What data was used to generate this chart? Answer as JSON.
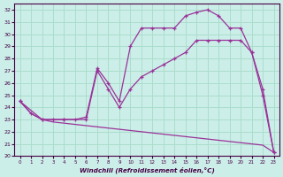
{
  "background_color": "#cceee8",
  "grid_color": "#aaddcc",
  "line_color": "#993399",
  "xlabel": "Windchill (Refroidissement éolien,°C)",
  "xlim": [
    -0.5,
    23.5
  ],
  "ylim": [
    20,
    32.5
  ],
  "xticks": [
    0,
    1,
    2,
    3,
    4,
    5,
    6,
    7,
    8,
    9,
    10,
    11,
    12,
    13,
    14,
    15,
    16,
    17,
    18,
    19,
    20,
    21,
    22,
    23
  ],
  "yticks": [
    20,
    21,
    22,
    23,
    24,
    25,
    26,
    27,
    28,
    29,
    30,
    31,
    32
  ],
  "curve1_x": [
    0,
    1,
    2,
    3,
    4,
    5,
    6,
    7,
    8,
    9,
    10,
    11,
    12,
    13,
    14,
    15,
    16,
    17,
    18,
    19,
    20,
    21,
    22,
    23
  ],
  "curve1_y": [
    24.5,
    23.5,
    23.0,
    23.0,
    23.0,
    23.0,
    23.2,
    27.2,
    26.0,
    24.5,
    29.0,
    30.5,
    30.5,
    30.5,
    30.5,
    31.5,
    31.8,
    32.0,
    31.5,
    30.5,
    30.5,
    28.5,
    25.0,
    20.3
  ],
  "curve2_x": [
    0,
    2,
    4,
    6,
    7,
    8,
    9,
    10,
    11,
    12,
    13,
    14,
    15,
    16,
    17,
    18,
    19,
    20,
    21,
    22,
    23
  ],
  "curve2_y": [
    24.5,
    23.0,
    23.0,
    23.0,
    27.0,
    25.5,
    24.0,
    25.5,
    26.5,
    27.0,
    27.5,
    28.0,
    28.5,
    29.5,
    29.5,
    29.5,
    29.5,
    29.5,
    28.5,
    25.5,
    20.3
  ],
  "curve3_x": [
    0,
    1,
    2,
    3,
    4,
    5,
    6,
    7,
    8,
    9,
    10,
    11,
    12,
    13,
    14,
    15,
    16,
    17,
    18,
    19,
    20,
    21,
    22,
    23
  ],
  "curve3_y": [
    24.5,
    23.5,
    23.0,
    22.8,
    22.7,
    22.6,
    22.5,
    22.4,
    22.3,
    22.2,
    22.1,
    22.0,
    21.9,
    21.8,
    21.7,
    21.6,
    21.5,
    21.4,
    21.3,
    21.2,
    21.1,
    21.0,
    20.9,
    20.3
  ]
}
